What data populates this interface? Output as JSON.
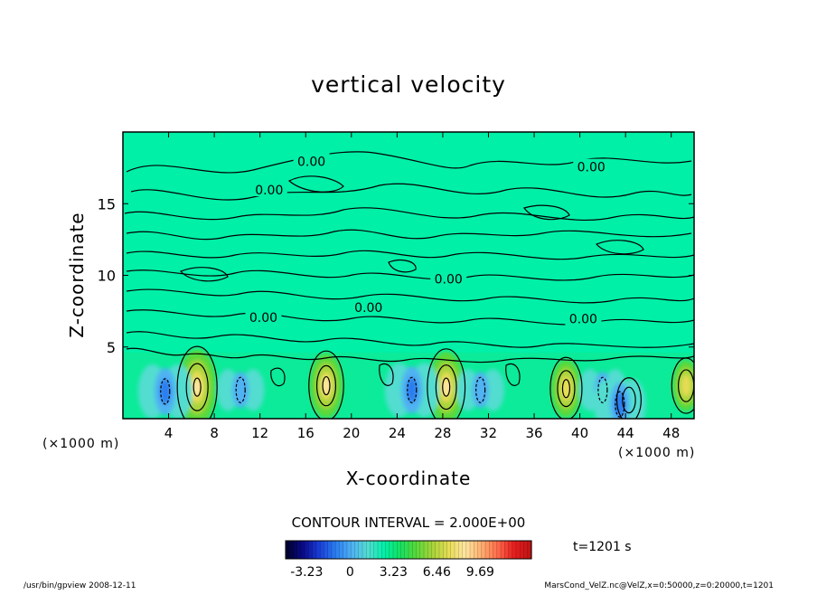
{
  "chart_data": {
    "type": "heatmap",
    "title": "vertical velocity",
    "xlabel": "X-coordinate",
    "ylabel": "Z-coordinate",
    "x_unit_left": "(×1000 m)",
    "x_unit_right": "(×1000 m)",
    "xlim": [
      0,
      50
    ],
    "ylim": [
      0,
      20
    ],
    "x_ticks": [
      4,
      8,
      12,
      16,
      20,
      24,
      28,
      32,
      36,
      40,
      44,
      48
    ],
    "y_ticks": [
      5,
      10,
      15
    ],
    "contour_interval_label": "CONTOUR INTERVAL = 2.000E+00",
    "contour_labels": [
      {
        "text": "0.00",
        "x": 16.5,
        "z": 17.9
      },
      {
        "text": "0.00",
        "x": 12.8,
        "z": 15.9
      },
      {
        "text": "0.00",
        "x": 41.0,
        "z": 17.5
      },
      {
        "text": "0.00",
        "x": 28.5,
        "z": 9.7
      },
      {
        "text": "0.00",
        "x": 21.5,
        "z": 7.7
      },
      {
        "text": "0.00",
        "x": 12.3,
        "z": 7.0
      },
      {
        "text": "0.00",
        "x": 40.3,
        "z": 6.9
      }
    ],
    "updrafts": [
      {
        "x": 6.5,
        "z": 2.2,
        "peak": 9.69
      },
      {
        "x": 17.8,
        "z": 2.3,
        "peak": 8.0
      },
      {
        "x": 28.3,
        "z": 2.2,
        "peak": 9.0
      },
      {
        "x": 38.8,
        "z": 2.1,
        "peak": 7.0
      },
      {
        "x": 44.3,
        "z": 1.3,
        "peak": 4.5
      },
      {
        "x": 49.3,
        "z": 2.3,
        "peak": 6.0
      }
    ],
    "downdrafts": [
      {
        "x": 3.7,
        "z": 1.9,
        "peak": -3.23
      },
      {
        "x": 10.3,
        "z": 2.0,
        "peak": -2.5
      },
      {
        "x": 25.3,
        "z": 2.0,
        "peak": -3.23
      },
      {
        "x": 31.3,
        "z": 2.0,
        "peak": -2.5
      },
      {
        "x": 42.0,
        "z": 2.0,
        "peak": -2.5
      },
      {
        "x": 43.5,
        "z": 1.0,
        "peak": -3.0
      }
    ],
    "colorbar": {
      "ticks": [
        "-3.23",
        "0",
        "3.23",
        "6.46",
        "9.69"
      ],
      "min": -4.8,
      "max": 13.5,
      "colors": [
        "#000033",
        "#0b0b8c",
        "#1a3fd9",
        "#2a7ef0",
        "#4fb2f2",
        "#52ddd0",
        "#00f0a8",
        "#16e060",
        "#5ad83a",
        "#a8d43a",
        "#e6dc55",
        "#ffe6a0",
        "#ffb070",
        "#ff6d4d",
        "#e61f1f",
        "#c21414"
      ]
    },
    "time_label": "t=1201 s"
  },
  "footer": {
    "left": "/usr/bin/gpview   2008-12-11",
    "right": "MarsCond_VelZ.nc@VelZ,x=0:50000,z=0:20000,t=1201"
  }
}
